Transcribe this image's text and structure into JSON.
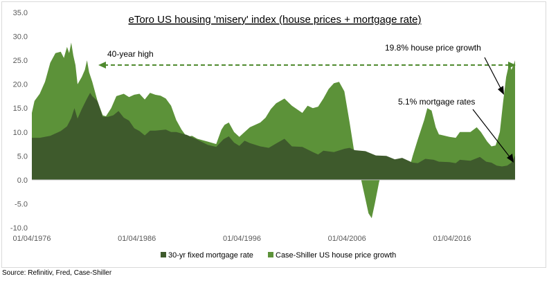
{
  "source": "Source: Refinitiv, Fred, Case-Shiller",
  "chart_data": {
    "type": "area",
    "title": "eToro US housing 'misery' index (house prices + mortgage rate)",
    "xlabel": "",
    "ylabel": "",
    "ylim": [
      -10,
      35
    ],
    "yticks": [
      "35.0",
      "30.0",
      "25.0",
      "20.0",
      "15.0",
      "10.0",
      "5.0",
      "0.0",
      "-5.0",
      "-10.0"
    ],
    "xlim": [
      1976.25,
      2022.25
    ],
    "xticks": [
      {
        "label": "01/04/1976",
        "x": 1976.25
      },
      {
        "label": "01/04/1986",
        "x": 1986.25
      },
      {
        "label": "01/04/1996",
        "x": 1996.25
      },
      {
        "label": "01/04/2006",
        "x": 2006.25
      },
      {
        "label": "01/04/2016",
        "x": 2016.25
      }
    ],
    "colors": {
      "mortgage": "#3e5a2c",
      "houseprice": "#5c9239",
      "arrow": "#4f8a2e",
      "axis": "#bfbfbf",
      "tick_text": "#595959"
    },
    "series": [
      {
        "name": "30-yr fixed mortgage rate",
        "points": [
          [
            1976.25,
            8.8
          ],
          [
            1977.0,
            8.8
          ],
          [
            1978.0,
            9.2
          ],
          [
            1979.0,
            10.2
          ],
          [
            1979.6,
            11.2
          ],
          [
            1980.0,
            12.9
          ],
          [
            1980.3,
            15.0
          ],
          [
            1980.6,
            12.8
          ],
          [
            1981.0,
            14.8
          ],
          [
            1981.5,
            17.0
          ],
          [
            1981.8,
            18.2
          ],
          [
            1982.0,
            17.5
          ],
          [
            1982.5,
            16.5
          ],
          [
            1983.0,
            13.2
          ],
          [
            1983.5,
            13.2
          ],
          [
            1984.0,
            13.5
          ],
          [
            1984.5,
            14.4
          ],
          [
            1985.0,
            13.0
          ],
          [
            1985.5,
            12.4
          ],
          [
            1986.0,
            10.8
          ],
          [
            1986.5,
            10.2
          ],
          [
            1987.0,
            9.3
          ],
          [
            1987.5,
            10.3
          ],
          [
            1988.0,
            10.3
          ],
          [
            1989.0,
            10.5
          ],
          [
            1989.5,
            10.0
          ],
          [
            1990.0,
            10.0
          ],
          [
            1991.0,
            9.4
          ],
          [
            1992.0,
            8.4
          ],
          [
            1993.0,
            7.3
          ],
          [
            1993.8,
            6.9
          ],
          [
            1994.5,
            8.5
          ],
          [
            1995.0,
            9.1
          ],
          [
            1995.5,
            7.8
          ],
          [
            1996.0,
            7.1
          ],
          [
            1996.5,
            8.2
          ],
          [
            1997.0,
            7.7
          ],
          [
            1998.0,
            7.0
          ],
          [
            1998.8,
            6.7
          ],
          [
            1999.5,
            7.6
          ],
          [
            2000.3,
            8.6
          ],
          [
            2001.0,
            7.0
          ],
          [
            2002.0,
            6.9
          ],
          [
            2003.0,
            5.8
          ],
          [
            2003.5,
            5.3
          ],
          [
            2004.0,
            6.1
          ],
          [
            2005.0,
            5.8
          ],
          [
            2006.0,
            6.5
          ],
          [
            2006.5,
            6.7
          ],
          [
            2007.0,
            6.2
          ],
          [
            2008.0,
            6.0
          ],
          [
            2009.0,
            5.1
          ],
          [
            2010.0,
            5.0
          ],
          [
            2010.8,
            4.3
          ],
          [
            2011.5,
            4.6
          ],
          [
            2012.5,
            3.6
          ],
          [
            2013.0,
            3.5
          ],
          [
            2013.7,
            4.4
          ],
          [
            2014.5,
            4.2
          ],
          [
            2015.0,
            3.8
          ],
          [
            2016.0,
            3.7
          ],
          [
            2016.6,
            3.5
          ],
          [
            2017.0,
            4.2
          ],
          [
            2018.0,
            4.0
          ],
          [
            2018.9,
            4.8
          ],
          [
            2019.5,
            3.8
          ],
          [
            2020.0,
            3.6
          ],
          [
            2020.5,
            3.0
          ],
          [
            2021.0,
            2.8
          ],
          [
            2021.5,
            3.0
          ],
          [
            2021.9,
            3.6
          ],
          [
            2022.25,
            5.1
          ]
        ]
      },
      {
        "name": "Case-Shiller US house price growth",
        "points": [
          [
            1976.25,
            14.0
          ],
          [
            1976.5,
            16.5
          ],
          [
            1977.0,
            18.0
          ],
          [
            1977.5,
            20.5
          ],
          [
            1978.0,
            24.5
          ],
          [
            1978.5,
            26.5
          ],
          [
            1979.0,
            26.8
          ],
          [
            1979.3,
            25.5
          ],
          [
            1979.6,
            27.8
          ],
          [
            1979.8,
            26.5
          ],
          [
            1980.0,
            28.7
          ],
          [
            1980.2,
            26.0
          ],
          [
            1980.4,
            24.0
          ],
          [
            1980.6,
            20.0
          ],
          [
            1981.0,
            21.5
          ],
          [
            1981.3,
            23.0
          ],
          [
            1981.5,
            25.0
          ],
          [
            1981.7,
            22.5
          ],
          [
            1982.0,
            20.5
          ],
          [
            1982.5,
            16.5
          ],
          [
            1983.0,
            13.5
          ],
          [
            1983.3,
            13.3
          ],
          [
            1983.8,
            15.0
          ],
          [
            1984.3,
            17.5
          ],
          [
            1985.0,
            18.0
          ],
          [
            1985.5,
            17.3
          ],
          [
            1986.0,
            17.8
          ],
          [
            1986.5,
            18.0
          ],
          [
            1987.0,
            16.8
          ],
          [
            1987.5,
            18.2
          ],
          [
            1988.0,
            17.8
          ],
          [
            1988.5,
            17.6
          ],
          [
            1989.0,
            17.0
          ],
          [
            1989.5,
            15.5
          ],
          [
            1990.0,
            12.5
          ],
          [
            1990.5,
            10.5
          ],
          [
            1991.0,
            9.0
          ],
          [
            1991.5,
            9.2
          ],
          [
            1992.0,
            8.6
          ],
          [
            1993.0,
            8.0
          ],
          [
            1993.8,
            7.5
          ],
          [
            1994.3,
            10.5
          ],
          [
            1994.6,
            11.5
          ],
          [
            1995.0,
            12.0
          ],
          [
            1995.5,
            10.0
          ],
          [
            1996.0,
            9.0
          ],
          [
            1996.5,
            10.0
          ],
          [
            1997.0,
            11.0
          ],
          [
            1998.0,
            12.0
          ],
          [
            1998.5,
            13.0
          ],
          [
            1999.0,
            14.8
          ],
          [
            1999.5,
            16.0
          ],
          [
            2000.3,
            17.0
          ],
          [
            2001.0,
            15.5
          ],
          [
            2002.0,
            14.0
          ],
          [
            2002.5,
            15.5
          ],
          [
            2003.0,
            15.0
          ],
          [
            2003.5,
            15.3
          ],
          [
            2004.0,
            17.0
          ],
          [
            2004.5,
            19.0
          ],
          [
            2005.0,
            20.2
          ],
          [
            2005.5,
            20.5
          ],
          [
            2006.0,
            18.5
          ],
          [
            2006.5,
            12.0
          ],
          [
            2007.0,
            5.0
          ],
          [
            2007.5,
            1.0
          ],
          [
            2008.0,
            -4.0
          ],
          [
            2008.3,
            -7.0
          ],
          [
            2008.6,
            -8.0
          ],
          [
            2008.9,
            -5.0
          ],
          [
            2009.3,
            -0.5
          ],
          [
            2009.8,
            3.5
          ],
          [
            2010.3,
            4.5
          ],
          [
            2010.8,
            1.5
          ],
          [
            2011.5,
            1.0
          ],
          [
            2012.0,
            1.0
          ],
          [
            2012.5,
            5.0
          ],
          [
            2013.0,
            8.5
          ],
          [
            2013.6,
            12.5
          ],
          [
            2013.9,
            15.0
          ],
          [
            2014.3,
            14.5
          ],
          [
            2014.7,
            11.0
          ],
          [
            2015.0,
            9.5
          ],
          [
            2016.0,
            9.0
          ],
          [
            2016.6,
            8.8
          ],
          [
            2017.0,
            10.0
          ],
          [
            2018.0,
            10.0
          ],
          [
            2018.6,
            11.0
          ],
          [
            2019.0,
            10.0
          ],
          [
            2019.6,
            8.0
          ],
          [
            2020.0,
            7.0
          ],
          [
            2020.4,
            7.2
          ],
          [
            2020.8,
            10.0
          ],
          [
            2021.1,
            16.0
          ],
          [
            2021.4,
            21.5
          ],
          [
            2021.7,
            24.5
          ],
          [
            2021.9,
            23.0
          ],
          [
            2022.1,
            24.0
          ],
          [
            2022.25,
            25.0
          ]
        ]
      }
    ],
    "annotations": [
      {
        "text": "40-year high"
      },
      {
        "text": "19.8% house price growth"
      },
      {
        "text": "5.1% mortgage rates"
      }
    ],
    "legend_position": "bottom"
  }
}
